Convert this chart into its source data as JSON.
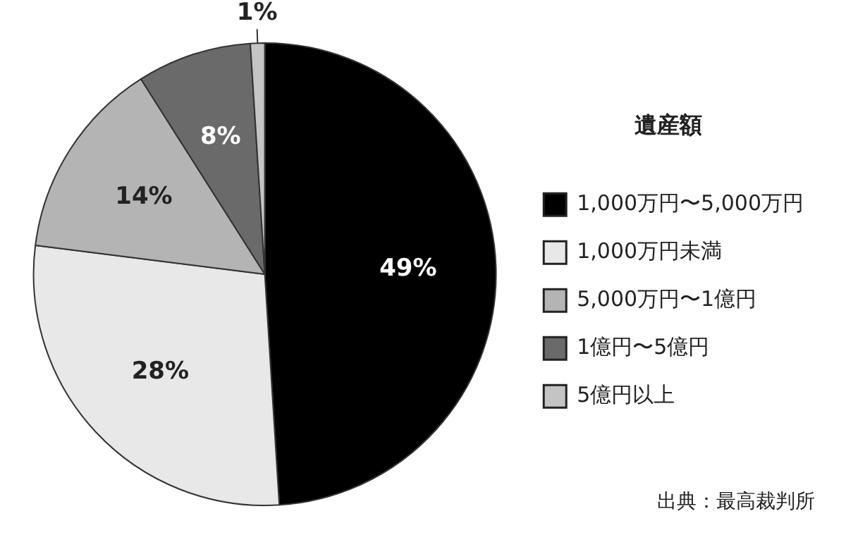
{
  "chart_data": {
    "type": "pie",
    "legend_title": "遺産額",
    "categories": [
      "1,000万円〜5,000万円",
      "1,000万円未満",
      "5,000万円〜1億円",
      "1億円〜5億円",
      "5億円以上"
    ],
    "values": [
      49,
      28,
      14,
      8,
      1
    ],
    "colors": [
      "#000000",
      "#e8e8e8",
      "#b4b4b4",
      "#6a6a6a",
      "#c4c4c4"
    ],
    "value_labels": [
      "49%",
      "28%",
      "14%",
      "8%",
      "1%"
    ],
    "legend": "right",
    "annotations": [
      "出典：最高裁判所"
    ]
  }
}
